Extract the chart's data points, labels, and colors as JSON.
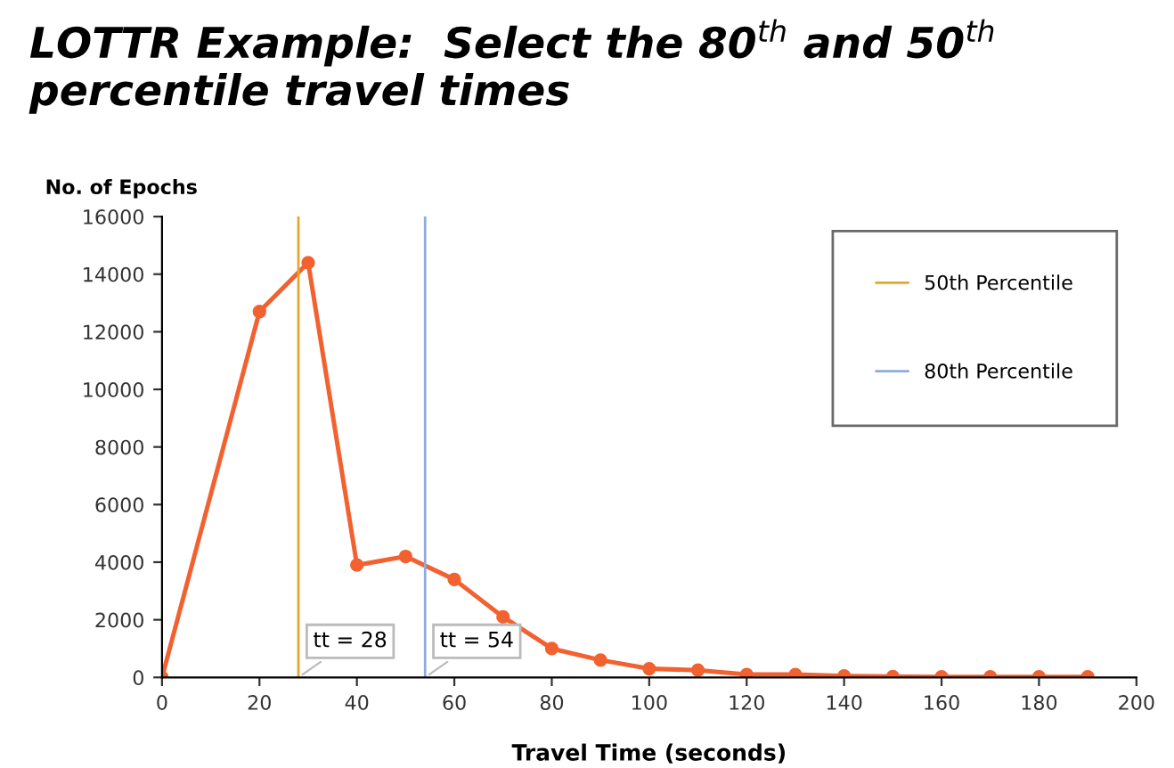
{
  "chart_data": {
    "type": "line",
    "title": "LOTTR Example:  Select the 80$^{th}$ and 50$^{th}$ percentile travel times",
    "xlabel": "Travel Time (seconds)",
    "ylabel": "No. of Epochs",
    "series": [
      {
        "color": "#f26130",
        "marker": "circle",
        "x": [
          0,
          20,
          30,
          40,
          50,
          60,
          70,
          80,
          90,
          100,
          110,
          120,
          130,
          140,
          150,
          160,
          170,
          180,
          190
        ],
        "values": [
          0,
          12700,
          14400,
          3900,
          4200,
          3400,
          2100,
          1000,
          600,
          300,
          250,
          100,
          100,
          50,
          30,
          20,
          20,
          20,
          20
        ]
      },
      {
        "name": "50th Percentile",
        "color": "#e0a830",
        "marker": "none",
        "x": [
          28,
          28
        ],
        "values": [
          0,
          16000
        ]
      },
      {
        "name": "80th Percentile",
        "color": "#8faadc",
        "marker": "none",
        "x": [
          54,
          54
        ],
        "values": [
          0,
          16000
        ]
      }
    ],
    "annotations": [
      {
        "text": "tt = 28",
        "x": 28,
        "y": 0
      },
      {
        "text": "tt = 54",
        "x": 54,
        "y": 0
      }
    ],
    "xlim": [
      0,
      200
    ],
    "xticks": [
      0,
      20,
      40,
      60,
      80,
      100,
      120,
      140,
      160,
      180,
      200
    ],
    "ylim": [
      0,
      16000
    ],
    "yticks": [
      0,
      2000,
      4000,
      6000,
      8000,
      10000,
      12000,
      14000,
      16000
    ],
    "grid": false,
    "legend": "top right"
  }
}
